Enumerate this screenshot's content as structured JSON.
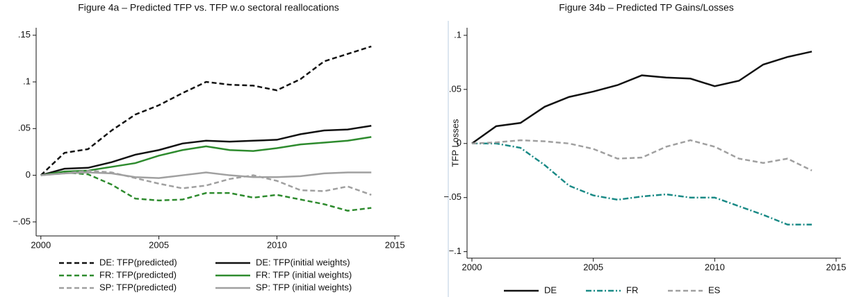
{
  "chart_data": [
    {
      "type": "line",
      "title": "Figure 4a – Predicted TFP vs. TFP w.o sectoral reallocations",
      "x": [
        2000,
        2001,
        2002,
        2003,
        2004,
        2005,
        2006,
        2007,
        2008,
        2009,
        2010,
        2011,
        2012,
        2013,
        2014
      ],
      "xlim": [
        1999.8,
        2015.2
      ],
      "xticks": [
        2000,
        2005,
        2010,
        2015
      ],
      "ylim": [
        -0.065,
        0.158
      ],
      "yticks": [
        {
          "value": -0.05,
          "label": "−.05"
        },
        0,
        {
          "value": 0.05,
          "label": ".05"
        },
        {
          "value": 0.1,
          "label": ".1"
        },
        {
          "value": 0.15,
          "label": ".15"
        }
      ],
      "series": [
        {
          "name": "DE: TFP(predicted)",
          "color": "#111111",
          "dash": "dashed",
          "values": [
            0,
            0.024,
            0.028,
            0.048,
            0.065,
            0.075,
            0.088,
            0.1,
            0.097,
            0.096,
            0.091,
            0.103,
            0.122,
            0.13,
            0.138
          ]
        },
        {
          "name": "DE: TFP(initial weights)",
          "color": "#111111",
          "dash": "solid",
          "values": [
            0,
            0.007,
            0.008,
            0.014,
            0.022,
            0.027,
            0.034,
            0.037,
            0.036,
            0.037,
            0.038,
            0.044,
            0.048,
            0.049,
            0.053
          ]
        },
        {
          "name": "FR: TFP(predicted)",
          "color": "#2e8b2e",
          "dash": "dashed",
          "values": [
            0,
            0.003,
            0.001,
            -0.01,
            -0.025,
            -0.027,
            -0.026,
            -0.019,
            -0.019,
            -0.024,
            -0.021,
            -0.026,
            -0.031,
            -0.038,
            -0.035
          ]
        },
        {
          "name": "FR: TFP (initial weights)",
          "color": "#2e8b2e",
          "dash": "solid",
          "values": [
            0,
            0.004,
            0.005,
            0.009,
            0.013,
            0.021,
            0.027,
            0.031,
            0.027,
            0.026,
            0.029,
            0.033,
            0.035,
            0.037,
            0.041
          ]
        },
        {
          "name": "SP: TFP(predicted)",
          "color": "#a0a0a0",
          "dash": "dashed",
          "values": [
            0,
            0.002,
            0.005,
            0.003,
            -0.003,
            -0.009,
            -0.014,
            -0.011,
            -0.004,
            0.0,
            -0.006,
            -0.016,
            -0.017,
            -0.012,
            -0.021
          ]
        },
        {
          "name": "SP: TFP (initial weights)",
          "color": "#a0a0a0",
          "dash": "solid",
          "values": [
            0,
            0.002,
            0.003,
            0.002,
            -0.002,
            -0.003,
            0.0,
            0.003,
            0.0,
            -0.002,
            -0.002,
            -0.001,
            0.002,
            0.003,
            0.003
          ]
        }
      ]
    },
    {
      "type": "line",
      "title": "Figure 34b – Predicted TP Gains/Losses",
      "y_label": "TFP Losses",
      "x": [
        2000,
        2001,
        2002,
        2003,
        2004,
        2005,
        2006,
        2007,
        2008,
        2009,
        2010,
        2011,
        2012,
        2013,
        2014
      ],
      "xlim": [
        1999.8,
        2015.2
      ],
      "xticks": [
        2000,
        2005,
        2010,
        2015
      ],
      "ylim": [
        -0.106,
        0.107
      ],
      "yticks": [
        {
          "value": -0.1,
          "label": "−.1"
        },
        {
          "value": -0.05,
          "label": "−.05"
        },
        0,
        {
          "value": 0.05,
          "label": ".05"
        },
        {
          "value": 0.1,
          "label": ".1"
        }
      ],
      "series": [
        {
          "name": "DE",
          "color": "#111111",
          "dash": "solid",
          "values": [
            0,
            0.016,
            0.019,
            0.034,
            0.043,
            0.048,
            0.054,
            0.063,
            0.061,
            0.06,
            0.053,
            0.058,
            0.073,
            0.08,
            0.085
          ]
        },
        {
          "name": "FR",
          "color": "#1a8a86",
          "dash": "dashdot",
          "values": [
            0,
            0.0,
            -0.004,
            -0.02,
            -0.039,
            -0.048,
            -0.052,
            -0.049,
            -0.047,
            -0.05,
            -0.05,
            -0.058,
            -0.066,
            -0.075,
            -0.075
          ]
        },
        {
          "name": "ES",
          "color": "#a0a0a0",
          "dash": "dashed",
          "values": [
            0,
            0.001,
            0.003,
            0.002,
            0.0,
            -0.005,
            -0.014,
            -0.013,
            -0.003,
            0.003,
            -0.003,
            -0.014,
            -0.018,
            -0.014,
            -0.025
          ]
        }
      ]
    }
  ]
}
